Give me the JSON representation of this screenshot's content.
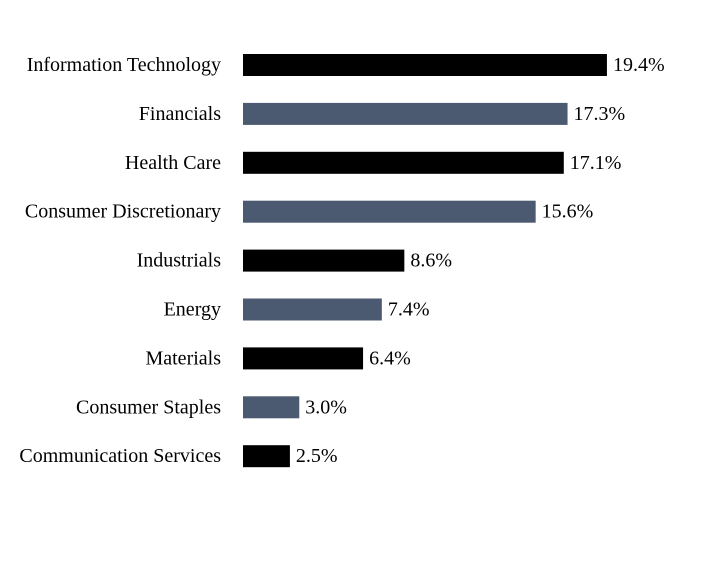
{
  "chart_data": {
    "type": "bar",
    "orientation": "horizontal",
    "title": "",
    "xlabel": "",
    "ylabel": "",
    "categories": [
      "Information Technology",
      "Financials",
      "Health Care",
      "Consumer Discretionary",
      "Industrials",
      "Energy",
      "Materials",
      "Consumer Staples",
      "Communication Services"
    ],
    "values": [
      19.4,
      17.3,
      17.1,
      15.6,
      8.6,
      7.4,
      6.4,
      3.0,
      2.5
    ],
    "value_labels": [
      "19.4%",
      "17.3%",
      "17.1%",
      "15.6%",
      "8.6%",
      "7.4%",
      "6.4%",
      "3.0%",
      "2.5%"
    ],
    "unit": "%",
    "grid": false,
    "legend": "none",
    "colors": [
      "#000000",
      "#4b5a70"
    ]
  }
}
